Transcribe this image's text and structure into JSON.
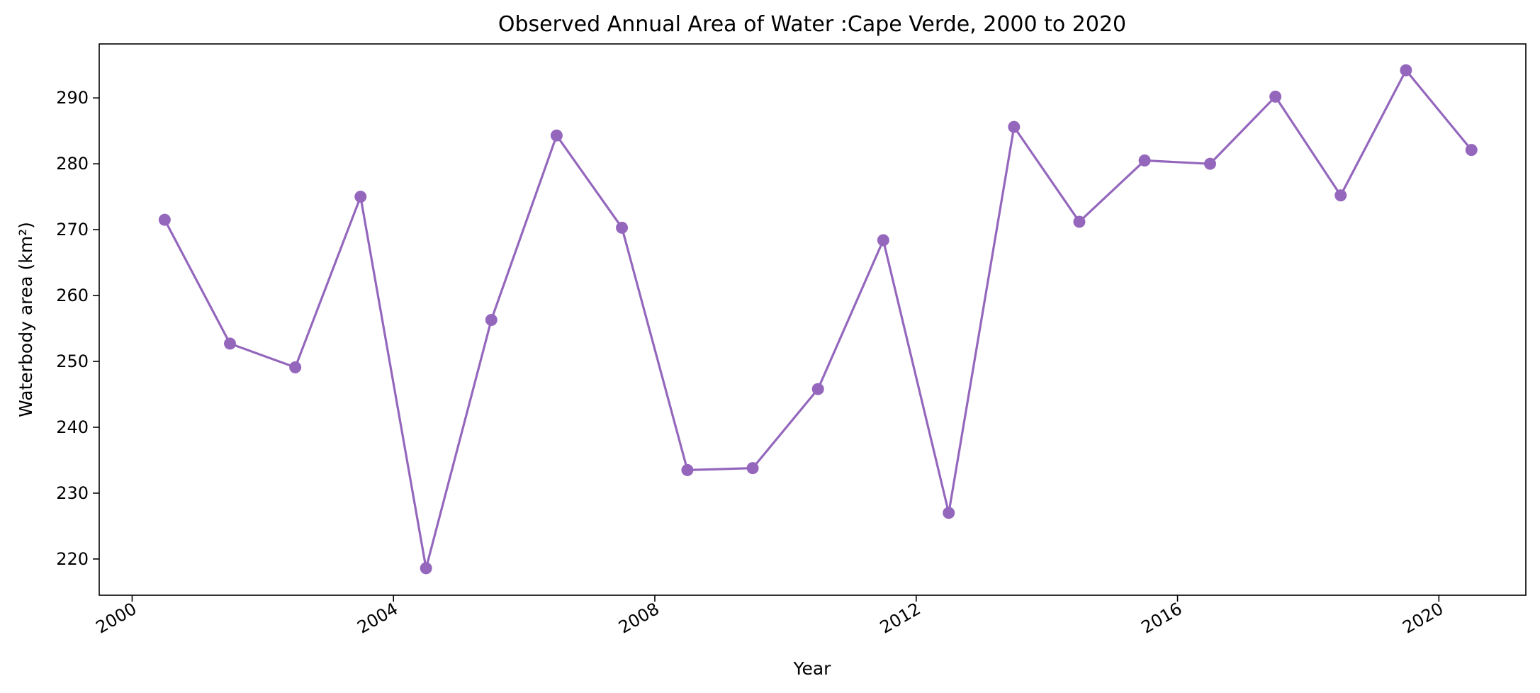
{
  "chart_data": {
    "type": "line",
    "title": "Observed Annual Area of Water :Cape Verde, 2000 to 2020",
    "xlabel": "Year",
    "ylabel": "Waterbody area (km²)",
    "x": [
      "2000-07-01",
      "2001-07-01",
      "2002-07-01",
      "2003-07-01",
      "2004-07-01",
      "2005-07-01",
      "2006-07-01",
      "2007-07-01",
      "2008-07-01",
      "2009-07-01",
      "2010-07-01",
      "2011-07-01",
      "2012-07-01",
      "2013-07-01",
      "2014-07-01",
      "2015-07-01",
      "2016-07-01",
      "2017-07-01",
      "2018-07-01",
      "2019-07-01",
      "2020-07-01"
    ],
    "series": [
      {
        "values": [
          271.5,
          252.7,
          249.1,
          275.0,
          218.6,
          256.3,
          284.3,
          270.3,
          233.5,
          233.8,
          245.8,
          268.4,
          227.0,
          285.6,
          271.2,
          280.5,
          280.0,
          290.2,
          275.2,
          294.2,
          282.1
        ]
      }
    ],
    "xlim": [
      "1999-07-01",
      "2021-05-01"
    ],
    "ylim": [
      214.5,
      298.2
    ],
    "x_ticks": [
      "2000-01-01",
      "2004-01-01",
      "2008-01-01",
      "2012-01-01",
      "2016-01-01",
      "2020-01-01"
    ],
    "x_tick_labels": [
      "2000",
      "2004",
      "2008",
      "2012",
      "2016",
      "2020"
    ],
    "y_ticks": [
      220,
      230,
      240,
      250,
      260,
      270,
      280,
      290
    ],
    "y_tick_labels": [
      "220",
      "230",
      "240",
      "250",
      "260",
      "270",
      "280",
      "290"
    ],
    "grid": false,
    "line_color": "#9467bd",
    "marker": "circle"
  }
}
